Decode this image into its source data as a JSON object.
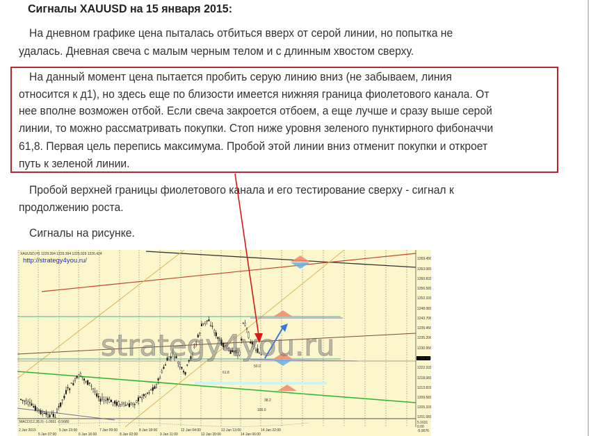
{
  "article": {
    "title": "Сигналы XAUUSD на 15 января 2015:",
    "p1": [
      "На дневном графике цена пыталась отбиться вверх от серой линии, но попытка не",
      "удалась. Дневная свеча с малым черным телом и с длинным хвостом сверху."
    ],
    "p2": [
      "На данный момент цена пытается пробить серую линию вниз (не забываем, линия",
      "относится к д1), но здесь еще по близости имеется нижняя граница фиолетового канала. От",
      "нее вполне возможен отбой. Если свеча закроется отбоем, а еще лучше и сразу выше серой",
      "линии, то можно рассматривать покупки. Стоп ниже уровня зеленого пунктирного фибоначчи",
      "61,8. Первая цель перепись максимума. Пробой этой линии вниз отменит покупки и откроет",
      "путь к зеленой линии."
    ],
    "p3": [
      "Пробой верхней границы фиолетового канала и его тестирование сверху - сигнал к",
      "продолжению роста."
    ],
    "p4": [
      "Сигналы на рисунке."
    ],
    "highlight_color": "#b5262e"
  },
  "chart": {
    "header": "XAUUSD,H1 1229.394 1229.394 1225.929 1226.424",
    "site_link": "http://strategy4you.ru/",
    "watermark": "strategy4you.ru",
    "price_labels": [
      "1269.456",
      "1263.081",
      "1260.831",
      "1256.581",
      "1252.331",
      "1248.081",
      "1243.706",
      "1239.456",
      "1235.206",
      "1230.956",
      "1226.424",
      "1222.331",
      "1218.081",
      "1213.831",
      "1209.581",
      "1205.331",
      "1201.081"
    ],
    "current_price": "1226.424",
    "macd_label": "MACD(12,26,9) -1.0551 -0.5680",
    "macd_labels": [
      "5.1631",
      "0.00",
      "-5.9076"
    ],
    "fibo_labels": [
      "61.8",
      "38.2",
      "50.0",
      "100.0"
    ],
    "date_labels": [
      "2 Jan 2015",
      "5 Jan 07:00",
      "5 Jan 23:00",
      "6 Jan 16:00",
      "7 Jan 09:00",
      "8 Jan 02:00",
      "8 Jan 18:00",
      "9 Jan 11:00",
      "12 Jan 04:00",
      "12 Jan 20:00",
      "13 Jan 13:00",
      "14 Jan 06:00",
      "14 Jan 22:00"
    ],
    "background": "#fbf6cc"
  }
}
